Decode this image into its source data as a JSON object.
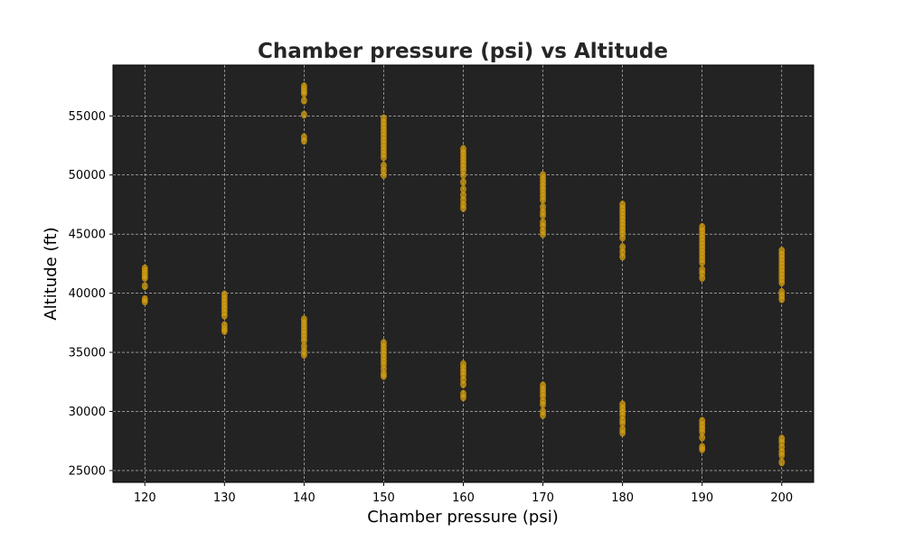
{
  "chart_data": {
    "type": "scatter",
    "title": "Chamber pressure (psi) vs Altitude",
    "xlabel": "Chamber pressure (psi)",
    "ylabel": "Altitude (ft)",
    "xlim": [
      116,
      204
    ],
    "ylim": [
      24000,
      59300
    ],
    "xticks": [
      120,
      130,
      140,
      150,
      160,
      170,
      180,
      190,
      200
    ],
    "yticks": [
      25000,
      30000,
      35000,
      40000,
      45000,
      50000,
      55000
    ],
    "xtick_labels": [
      "120",
      "130",
      "140",
      "150",
      "160",
      "170",
      "180",
      "190",
      "200"
    ],
    "ytick_labels": [
      "25000",
      "30000",
      "35000",
      "40000",
      "45000",
      "50000",
      "55000"
    ],
    "grid": true,
    "background": "#232323",
    "marker_color": "#d4a017",
    "points": [
      {
        "x": 120,
        "y": 42100
      },
      {
        "x": 120,
        "y": 41900
      },
      {
        "x": 120,
        "y": 41700
      },
      {
        "x": 120,
        "y": 41500
      },
      {
        "x": 120,
        "y": 41300
      },
      {
        "x": 120,
        "y": 40600
      },
      {
        "x": 120,
        "y": 39500
      },
      {
        "x": 120,
        "y": 39300
      },
      {
        "x": 130,
        "y": 39900
      },
      {
        "x": 130,
        "y": 39600
      },
      {
        "x": 130,
        "y": 39300
      },
      {
        "x": 130,
        "y": 39000
      },
      {
        "x": 130,
        "y": 38700
      },
      {
        "x": 130,
        "y": 38400
      },
      {
        "x": 130,
        "y": 38100
      },
      {
        "x": 130,
        "y": 37300
      },
      {
        "x": 130,
        "y": 37000
      },
      {
        "x": 130,
        "y": 36800
      },
      {
        "x": 140,
        "y": 57500
      },
      {
        "x": 140,
        "y": 57300
      },
      {
        "x": 140,
        "y": 57100
      },
      {
        "x": 140,
        "y": 56900
      },
      {
        "x": 140,
        "y": 56300
      },
      {
        "x": 140,
        "y": 55100
      },
      {
        "x": 140,
        "y": 53200
      },
      {
        "x": 140,
        "y": 52900
      },
      {
        "x": 140,
        "y": 37800
      },
      {
        "x": 140,
        "y": 37500
      },
      {
        "x": 140,
        "y": 37200
      },
      {
        "x": 140,
        "y": 36900
      },
      {
        "x": 140,
        "y": 36600
      },
      {
        "x": 140,
        "y": 36300
      },
      {
        "x": 140,
        "y": 36000
      },
      {
        "x": 140,
        "y": 35500
      },
      {
        "x": 140,
        "y": 35100
      },
      {
        "x": 140,
        "y": 34800
      },
      {
        "x": 150,
        "y": 54800
      },
      {
        "x": 150,
        "y": 54500
      },
      {
        "x": 150,
        "y": 54200
      },
      {
        "x": 150,
        "y": 53900
      },
      {
        "x": 150,
        "y": 53600
      },
      {
        "x": 150,
        "y": 53300
      },
      {
        "x": 150,
        "y": 53000
      },
      {
        "x": 150,
        "y": 52700
      },
      {
        "x": 150,
        "y": 52400
      },
      {
        "x": 150,
        "y": 52100
      },
      {
        "x": 150,
        "y": 51800
      },
      {
        "x": 150,
        "y": 51500
      },
      {
        "x": 150,
        "y": 50800
      },
      {
        "x": 150,
        "y": 50400
      },
      {
        "x": 150,
        "y": 50000
      },
      {
        "x": 150,
        "y": 35800
      },
      {
        "x": 150,
        "y": 35500
      },
      {
        "x": 150,
        "y": 35200
      },
      {
        "x": 150,
        "y": 34900
      },
      {
        "x": 150,
        "y": 34600
      },
      {
        "x": 150,
        "y": 34300
      },
      {
        "x": 150,
        "y": 34000
      },
      {
        "x": 150,
        "y": 33600
      },
      {
        "x": 150,
        "y": 33200
      },
      {
        "x": 150,
        "y": 33000
      },
      {
        "x": 160,
        "y": 52200
      },
      {
        "x": 160,
        "y": 51900
      },
      {
        "x": 160,
        "y": 51600
      },
      {
        "x": 160,
        "y": 51300
      },
      {
        "x": 160,
        "y": 51000
      },
      {
        "x": 160,
        "y": 50700
      },
      {
        "x": 160,
        "y": 50400
      },
      {
        "x": 160,
        "y": 50000
      },
      {
        "x": 160,
        "y": 49400
      },
      {
        "x": 160,
        "y": 48800
      },
      {
        "x": 160,
        "y": 48300
      },
      {
        "x": 160,
        "y": 47900
      },
      {
        "x": 160,
        "y": 47500
      },
      {
        "x": 160,
        "y": 47200
      },
      {
        "x": 160,
        "y": 34000
      },
      {
        "x": 160,
        "y": 33700
      },
      {
        "x": 160,
        "y": 33400
      },
      {
        "x": 160,
        "y": 33100
      },
      {
        "x": 160,
        "y": 32700
      },
      {
        "x": 160,
        "y": 32300
      },
      {
        "x": 160,
        "y": 31500
      },
      {
        "x": 160,
        "y": 31200
      },
      {
        "x": 170,
        "y": 50000
      },
      {
        "x": 170,
        "y": 49700
      },
      {
        "x": 170,
        "y": 49400
      },
      {
        "x": 170,
        "y": 49100
      },
      {
        "x": 170,
        "y": 48800
      },
      {
        "x": 170,
        "y": 48500
      },
      {
        "x": 170,
        "y": 48200
      },
      {
        "x": 170,
        "y": 47900
      },
      {
        "x": 170,
        "y": 47300
      },
      {
        "x": 170,
        "y": 46900
      },
      {
        "x": 170,
        "y": 46600
      },
      {
        "x": 170,
        "y": 46000
      },
      {
        "x": 170,
        "y": 45700
      },
      {
        "x": 170,
        "y": 45300
      },
      {
        "x": 170,
        "y": 45000
      },
      {
        "x": 170,
        "y": 32200
      },
      {
        "x": 170,
        "y": 31900
      },
      {
        "x": 170,
        "y": 31600
      },
      {
        "x": 170,
        "y": 31300
      },
      {
        "x": 170,
        "y": 30900
      },
      {
        "x": 170,
        "y": 30600
      },
      {
        "x": 170,
        "y": 30000
      },
      {
        "x": 170,
        "y": 29700
      },
      {
        "x": 180,
        "y": 47500
      },
      {
        "x": 180,
        "y": 47200
      },
      {
        "x": 180,
        "y": 46900
      },
      {
        "x": 180,
        "y": 46600
      },
      {
        "x": 180,
        "y": 46300
      },
      {
        "x": 180,
        "y": 46000
      },
      {
        "x": 180,
        "y": 45700
      },
      {
        "x": 180,
        "y": 45400
      },
      {
        "x": 180,
        "y": 45100
      },
      {
        "x": 180,
        "y": 44700
      },
      {
        "x": 180,
        "y": 43900
      },
      {
        "x": 180,
        "y": 43500
      },
      {
        "x": 180,
        "y": 43100
      },
      {
        "x": 180,
        "y": 30600
      },
      {
        "x": 180,
        "y": 30300
      },
      {
        "x": 180,
        "y": 30000
      },
      {
        "x": 180,
        "y": 29700
      },
      {
        "x": 180,
        "y": 29300
      },
      {
        "x": 180,
        "y": 29000
      },
      {
        "x": 180,
        "y": 28500
      },
      {
        "x": 180,
        "y": 28200
      },
      {
        "x": 190,
        "y": 45600
      },
      {
        "x": 190,
        "y": 45300
      },
      {
        "x": 190,
        "y": 45000
      },
      {
        "x": 190,
        "y": 44700
      },
      {
        "x": 190,
        "y": 44400
      },
      {
        "x": 190,
        "y": 44100
      },
      {
        "x": 190,
        "y": 43800
      },
      {
        "x": 190,
        "y": 43500
      },
      {
        "x": 190,
        "y": 43200
      },
      {
        "x": 190,
        "y": 42900
      },
      {
        "x": 190,
        "y": 42600
      },
      {
        "x": 190,
        "y": 42000
      },
      {
        "x": 190,
        "y": 41700
      },
      {
        "x": 190,
        "y": 41300
      },
      {
        "x": 190,
        "y": 29200
      },
      {
        "x": 190,
        "y": 28900
      },
      {
        "x": 190,
        "y": 28600
      },
      {
        "x": 190,
        "y": 28300
      },
      {
        "x": 190,
        "y": 27800
      },
      {
        "x": 190,
        "y": 27000
      },
      {
        "x": 190,
        "y": 26800
      },
      {
        "x": 200,
        "y": 43600
      },
      {
        "x": 200,
        "y": 43300
      },
      {
        "x": 200,
        "y": 43000
      },
      {
        "x": 200,
        "y": 42700
      },
      {
        "x": 200,
        "y": 42400
      },
      {
        "x": 200,
        "y": 42100
      },
      {
        "x": 200,
        "y": 41800
      },
      {
        "x": 200,
        "y": 41500
      },
      {
        "x": 200,
        "y": 41200
      },
      {
        "x": 200,
        "y": 40900
      },
      {
        "x": 200,
        "y": 40100
      },
      {
        "x": 200,
        "y": 39800
      },
      {
        "x": 200,
        "y": 39500
      },
      {
        "x": 200,
        "y": 27700
      },
      {
        "x": 200,
        "y": 27400
      },
      {
        "x": 200,
        "y": 27000
      },
      {
        "x": 200,
        "y": 26600
      },
      {
        "x": 200,
        "y": 26300
      },
      {
        "x": 200,
        "y": 25700
      }
    ]
  }
}
